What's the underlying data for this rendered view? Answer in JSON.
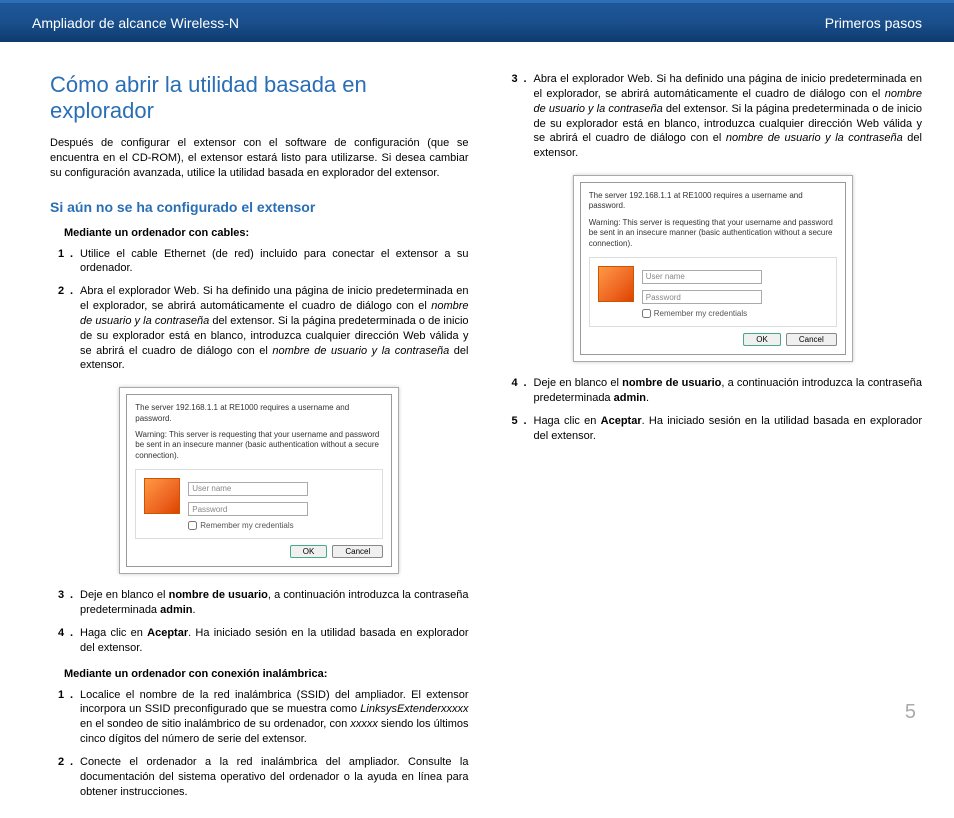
{
  "header": {
    "left": "Ampliador de alcance Wireless-N",
    "right": "Primeros pasos"
  },
  "left": {
    "title": "Cómo abrir la utilidad basada en explorador",
    "intro": "Después de configurar el extensor con el software de configuración (que se encuentra en el CD-ROM), el extensor estará listo para utilizarse. Si desea cambiar su configuración avanzada, utilice la utilidad basada en explorador del extensor.",
    "subtitle": "Si aún no se ha configurado el extensor",
    "h3a": "Mediante un ordenador con cables:",
    "steps_a": [
      {
        "n": "1",
        "html": "Utilice el cable Ethernet (de red) incluido para conectar el extensor a su ordenador."
      },
      {
        "n": "2",
        "html": "Abra el explorador Web. Si ha definido una página de inicio predeterminada en el explorador, se abrirá automáticamente el cuadro de diálogo con el <em>nombre de usuario y la contraseña</em> del extensor. Si la página predeterminada o de inicio de su explorador está en blanco, introduzca cualquier dirección Web válida y se abrirá el cuadro de diálogo con el <em>nombre de usuario y la contraseña</em> del extensor."
      }
    ],
    "steps_a2": [
      {
        "n": "3",
        "html": "Deje en blanco el <strong>nombre de usuario</strong>, a continuación introduzca la contraseña predeterminada <strong>admin</strong>."
      },
      {
        "n": "4",
        "html": "Haga clic en <strong>Aceptar</strong>. Ha iniciado sesión en la utilidad basada en explorador del extensor."
      }
    ],
    "h3b": "Mediante un ordenador con conexión inalámbrica:",
    "steps_b": [
      {
        "n": "1",
        "html": "Localice el nombre de la red inalámbrica (SSID) del ampliador. El extensor incorpora un SSID preconfigurado que se muestra como <em>LinksysExtenderxxxxx</em> en el sondeo de sitio inalámbrico de su ordenador, con <em>xxxxx</em> siendo los últimos cinco dígitos del número de serie del extensor."
      },
      {
        "n": "2",
        "html": "Conecte el ordenador a la red inalámbrica del ampliador. Consulte la documentación del sistema operativo del ordenador o la ayuda en línea para obtener instrucciones."
      }
    ]
  },
  "right": {
    "steps_c": [
      {
        "n": "3",
        "html": "Abra el explorador Web. Si ha definido una página de inicio predeterminada en el explorador, se abrirá automáticamente el cuadro de diálogo con el <em>nombre de usuario y la contraseña</em> del extensor. Si la página predeterminada o de inicio de su explorador está en blanco, introduzca cualquier dirección Web válida y se abrirá el cuadro de diálogo con el <em>nombre de usuario y la contraseña</em> del extensor."
      }
    ],
    "steps_c2": [
      {
        "n": "4",
        "html": "Deje en blanco el <strong>nombre de usuario</strong>, a continuación introduzca la contraseña predeterminada <strong>admin</strong>."
      },
      {
        "n": "5",
        "html": "Haga clic en <strong>Aceptar</strong>. Ha iniciado sesión en la utilidad basada en explorador del extensor."
      }
    ]
  },
  "dialog": {
    "line1": "The server 192.168.1.1 at RE1000 requires a username and password.",
    "line2": "Warning: This server is requesting that your username and password be sent in an insecure manner (basic authentication without a secure connection).",
    "user": "User name",
    "pass": "Password",
    "remember": "Remember my credentials",
    "ok": "OK",
    "cancel": "Cancel"
  },
  "pagenum": "5",
  "colors": {
    "blue": "#2a6fb5",
    "header_grad_top": "#1e5799",
    "header_grad_bot": "#0d3a6e"
  }
}
